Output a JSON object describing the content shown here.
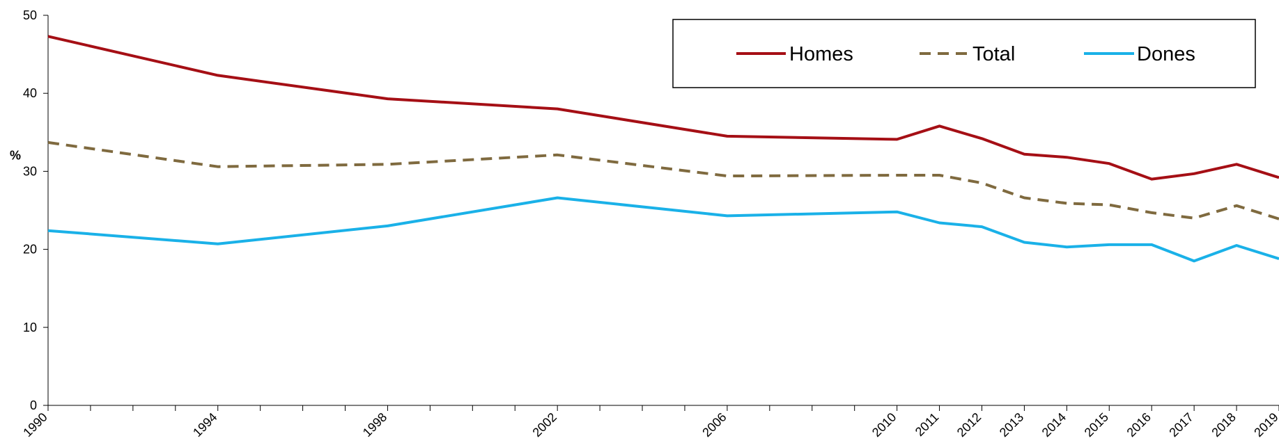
{
  "chart_data": {
    "type": "line",
    "ylabel": "%",
    "ylim": [
      0,
      50
    ],
    "yticks": [
      0,
      10,
      20,
      30,
      40,
      50
    ],
    "x": [
      "1990",
      "1994",
      "1998",
      "2002",
      "2006",
      "2010",
      "2011",
      "2012",
      "2013",
      "2014",
      "2015",
      "2016",
      "2017",
      "2018",
      "2019"
    ],
    "series": [
      {
        "name": "Homes",
        "color": "#A50F15",
        "dash": "solid",
        "values": [
          47.3,
          42.3,
          39.3,
          38.0,
          34.5,
          34.1,
          35.8,
          34.2,
          32.2,
          31.8,
          31.0,
          29.0,
          29.7,
          30.9,
          29.2
        ]
      },
      {
        "name": "Total",
        "color": "#7F6A3F",
        "dash": "dashed",
        "values": [
          33.7,
          30.6,
          30.9,
          32.1,
          29.4,
          29.5,
          29.5,
          28.5,
          26.6,
          25.9,
          25.7,
          24.7,
          24.0,
          25.6,
          23.9
        ]
      },
      {
        "name": "Dones",
        "color": "#1AB1E8",
        "dash": "solid",
        "values": [
          22.4,
          20.7,
          23.0,
          26.6,
          24.3,
          24.8,
          23.4,
          22.9,
          20.9,
          20.3,
          20.6,
          20.6,
          18.5,
          20.5,
          18.8
        ]
      }
    ],
    "grid": false,
    "legend": "top-right"
  }
}
